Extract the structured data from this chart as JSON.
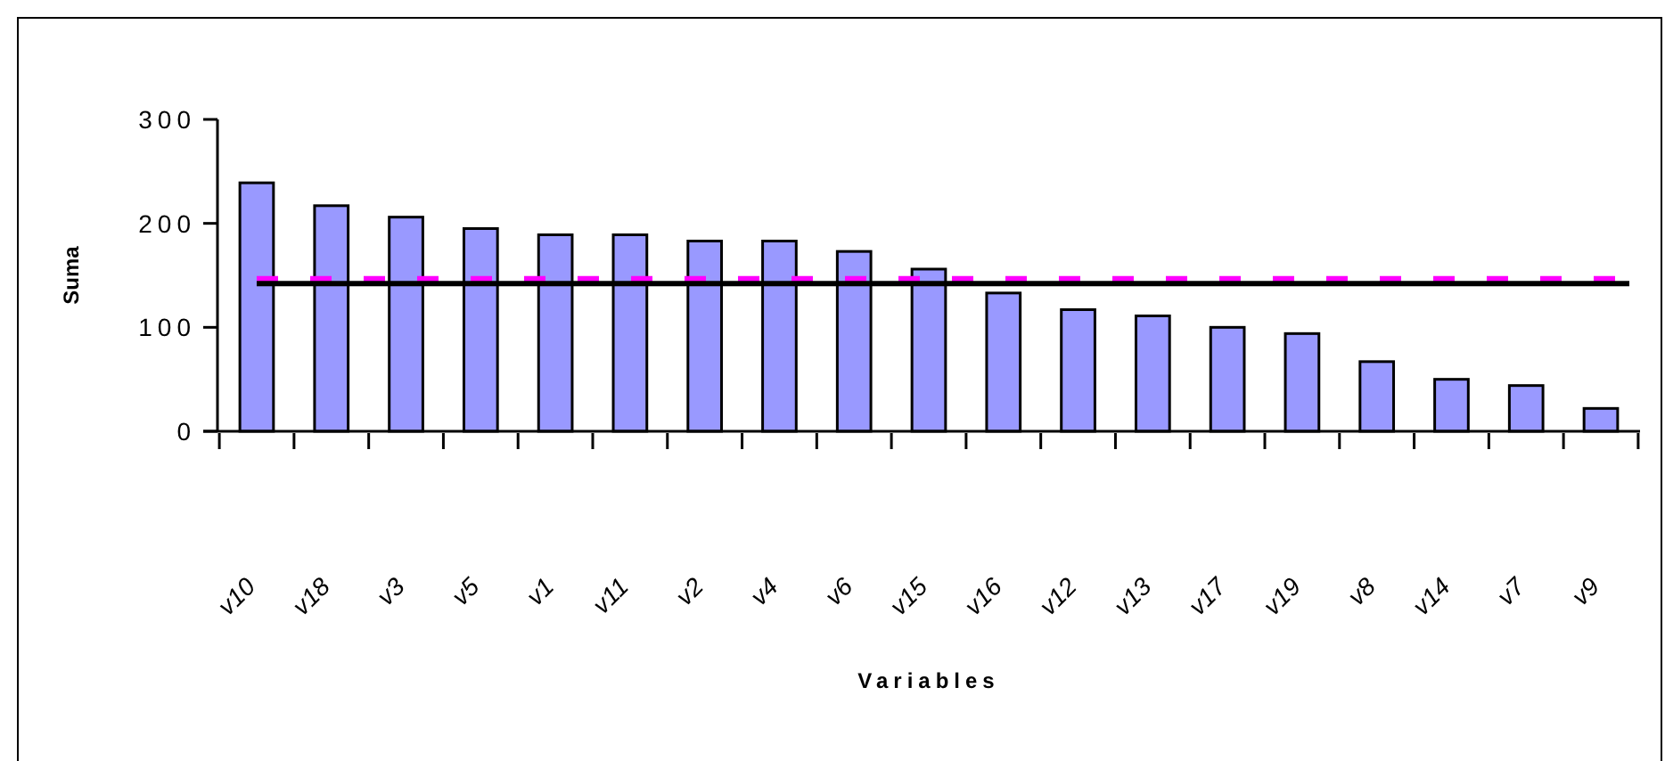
{
  "chart_data": {
    "type": "bar",
    "xlabel": "Variables",
    "ylabel": "Suma",
    "categories": [
      "v10",
      "v18",
      "v3",
      "v5",
      "v1",
      "v11",
      "v2",
      "v4",
      "v6",
      "v15",
      "v16",
      "v12",
      "v13",
      "v17",
      "v19",
      "v8",
      "v14",
      "v7",
      "v9"
    ],
    "values": [
      239,
      217,
      206,
      195,
      189,
      189,
      183,
      183,
      173,
      156,
      133,
      117,
      111,
      100,
      94,
      67,
      50,
      44,
      22
    ],
    "color": "#9999ff",
    "ylim": [
      0,
      300
    ],
    "yticks": [
      0,
      100,
      200,
      300
    ],
    "grid": false,
    "legend": false,
    "ref_lines": [
      {
        "axis": "y",
        "value": 146,
        "color": "#ff00ff",
        "line_style": "dashed"
      },
      {
        "axis": "y",
        "value": 142,
        "color": "#000000",
        "line_style": "solid"
      }
    ]
  }
}
